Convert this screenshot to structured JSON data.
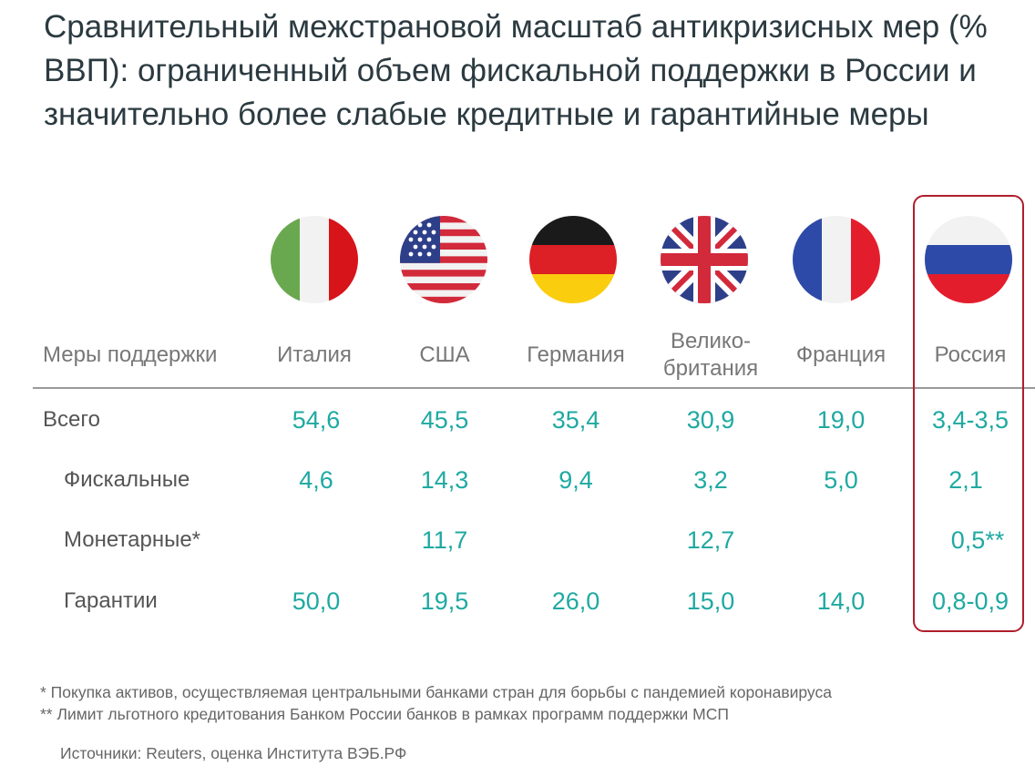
{
  "title": "Сравнительный межстрановой масштаб антикризисных мер (% ВВП): ограниченный объем фискальной поддержки в России и значительно более слабые кредитные и гарантийные меры",
  "table": {
    "header_label": "Меры поддержки",
    "countries": [
      {
        "name_line1": "Италия",
        "name_line2": "",
        "flag": "italy-flag-icon"
      },
      {
        "name_line1": "США",
        "name_line2": "",
        "flag": "usa-flag-icon"
      },
      {
        "name_line1": "Германия",
        "name_line2": "",
        "flag": "germany-flag-icon"
      },
      {
        "name_line1": "Велико-",
        "name_line2": "британия",
        "flag": "uk-flag-icon"
      },
      {
        "name_line1": "Франция",
        "name_line2": "",
        "flag": "france-flag-icon"
      },
      {
        "name_line1": "Россия",
        "name_line2": "",
        "flag": "russia-flag-icon"
      }
    ],
    "rows": [
      {
        "label": "Всего",
        "values": [
          "54,6",
          "45,5",
          "35,4",
          "30,9",
          "19,0",
          "3,4-3,5"
        ]
      },
      {
        "label": "Фискальные",
        "values": [
          "4,6",
          "14,3",
          "9,4",
          "3,2",
          "5,0",
          "2,1"
        ]
      },
      {
        "label": "Монетарные*",
        "values": [
          "",
          "11,7",
          "",
          "12,7",
          "",
          "0,5**"
        ]
      },
      {
        "label": "Гарантии",
        "values": [
          "50,0",
          "19,5",
          "26,0",
          "15,0",
          "14,0",
          "0,8-0,9"
        ]
      }
    ]
  },
  "colors": {
    "value": "#1fa9a2",
    "highlight_border": "#b01e2a",
    "title": "#2b3a40"
  },
  "footnotes": {
    "note1": "*  Покупка активов, осуществляемая центральными банками стран для борьбы с пандемией коронавируса",
    "note2": "** Лимит льготного кредитования Банком России банков в рамках программ поддержки МСП",
    "source": "Источники: Reuters, оценка Института ВЭБ.РФ"
  }
}
